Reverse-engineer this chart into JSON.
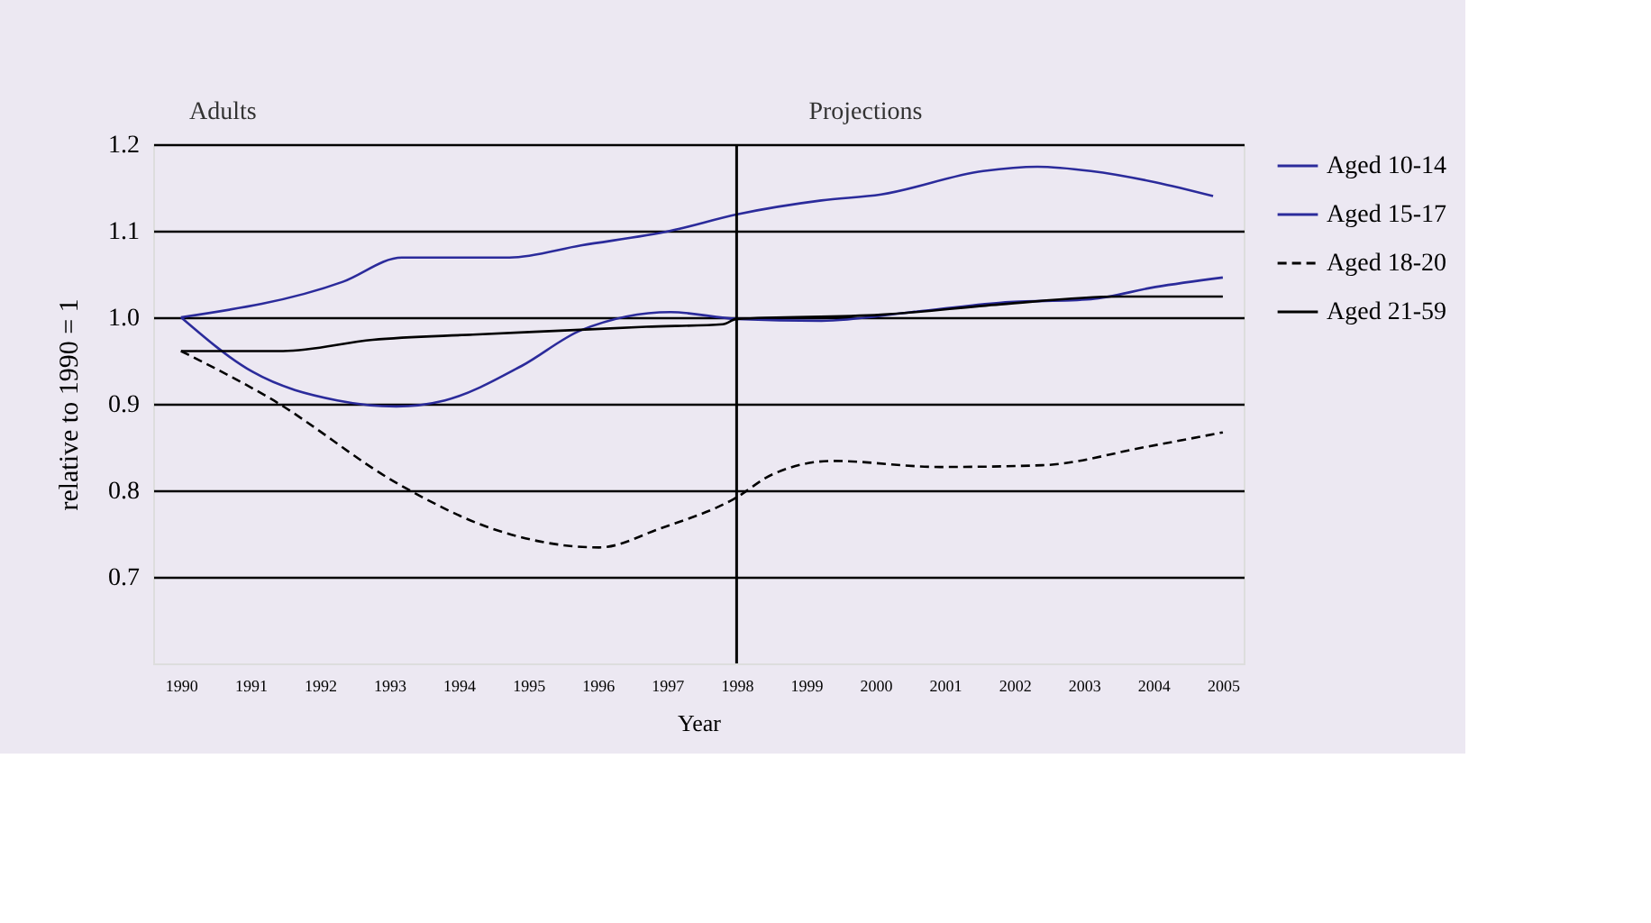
{
  "chart_data": {
    "type": "line",
    "xlabel": "Year",
    "ylabel": "relative to 1990 = 1",
    "annotations": [
      "Adults",
      "Projections"
    ],
    "xlim": [
      1989.6,
      2005.3
    ],
    "xticks": [
      1990,
      1991,
      1992,
      1993,
      1994,
      1995,
      1996,
      1997,
      1998,
      1999,
      2000,
      2001,
      2002,
      2003,
      2004,
      2005
    ],
    "ylim": [
      0.6,
      1.2
    ],
    "yticks": [
      0.7,
      0.8,
      0.9,
      {
        "value": 1,
        "label": "1.0"
      },
      1.1,
      1.2
    ],
    "grid": "y",
    "legend": "right",
    "marker": "none",
    "ref_lines": [
      {
        "axis": "x",
        "value": 1998,
        "color": "#000000",
        "line_style": "solid"
      }
    ],
    "series": [
      {
        "name": "Aged 10-14",
        "color": "#2b2b9b",
        "line_style": "solid",
        "x": [
          1990,
          1992.33,
          1993.18,
          1994.73,
          1995.76,
          1997.05,
          1998.01,
          1999.22,
          2000.08,
          2001.55,
          2002.33,
          2003.1,
          2004.03,
          2004.86
        ],
        "values": [
          1.0,
          1.041,
          1.069,
          1.069,
          1.083,
          1.1,
          1.119,
          1.135,
          1.142,
          1.169,
          1.174,
          1.169,
          1.156,
          1.14
        ]
      },
      {
        "name": "Aged 15-17",
        "color": "#2b2b9b",
        "line_style": "solid",
        "x": [
          1990,
          1991.03,
          1992.25,
          1993.1,
          1993.8,
          1994.91,
          1995.76,
          1997.05,
          1998.01,
          1999.22,
          2000.52,
          2001.81,
          2003.1,
          2004.03,
          2005
        ],
        "values": [
          1.0,
          0.937,
          0.904,
          0.897,
          0.904,
          0.944,
          0.985,
          1.006,
          0.998,
          0.996,
          1.006,
          1.017,
          1.021,
          1.035,
          1.046
        ]
      },
      {
        "name": "Aged 18-20",
        "color": "#000000",
        "line_style": "dashed",
        "x": [
          1990,
          1991.29,
          1993.18,
          1994.47,
          1996.02,
          1996.9,
          1997.96,
          1998.53,
          1999.38,
          2000.93,
          2002.4,
          2003.88,
          2005
        ],
        "values": [
          0.961,
          0.906,
          0.805,
          0.756,
          0.734,
          0.756,
          0.79,
          0.819,
          0.834,
          0.827,
          0.829,
          0.85,
          0.867
        ]
      },
      {
        "name": "Aged 21-59",
        "color": "#000000",
        "line_style": "solid",
        "x": [
          1990,
          1991.47,
          1992.76,
          1994.2,
          1995.6,
          1996.7,
          1997.8,
          1998,
          2000.08,
          2001.8,
          2003.5,
          2005
        ],
        "values": [
          0.961,
          0.961,
          0.974,
          0.98,
          0.985,
          0.989,
          0.992,
          0.998,
          1.003,
          1.015,
          1.024,
          1.024
        ]
      }
    ]
  }
}
